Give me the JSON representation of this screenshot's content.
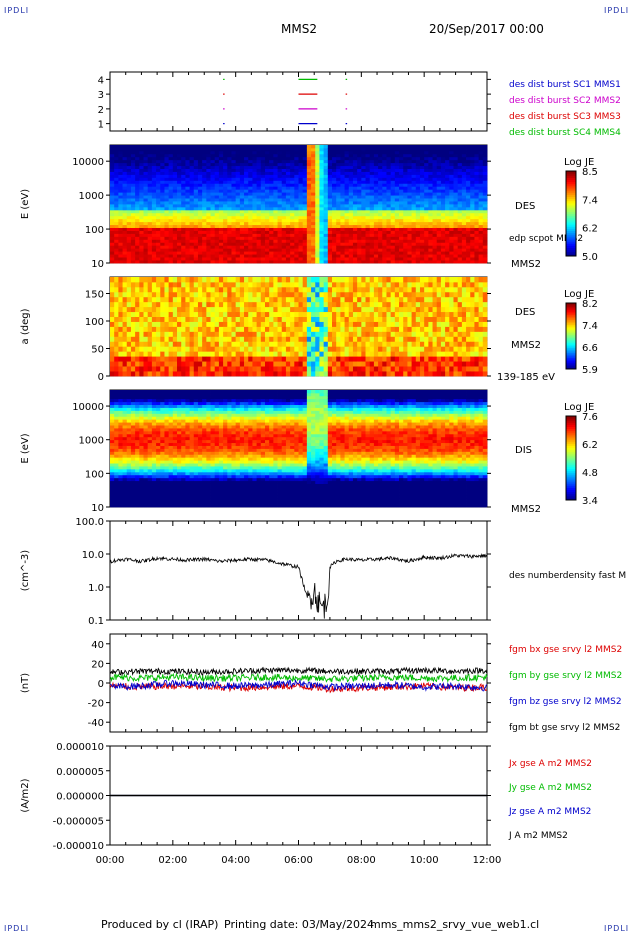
{
  "corner_tl": "IPDLI",
  "corner_tr": "IPDLI",
  "corner_bl": "IPDLI",
  "corner_br": "IPDLI",
  "header": {
    "spacecraft": "MMS2",
    "date": "20/Sep/2017 00:00"
  },
  "footer": {
    "produced_by": "Produced by cl (IRAP)",
    "printing_date": "Printing date: 03/May/2024",
    "file": "mms_mms2_srvy_vue_web1.cl"
  },
  "colors": {
    "mms1": "#0000cc",
    "mms2": "#cc00cc",
    "mms3": "#dd0000",
    "mms4": "#00bb00",
    "black": "#000000"
  },
  "chart_data": [
    {
      "type": "scatter",
      "panel": "burst availability",
      "ylim": [
        0.5,
        4.5
      ],
      "yticks": [
        "1",
        "2",
        "3",
        "4"
      ],
      "legend": [
        "des dist burst SC1 MMS1",
        "des dist burst SC2 MMS2",
        "des dist burst SC3 MMS3",
        "des dist burst SC4 MMS4"
      ],
      "series": [
        {
          "name": "des dist burst SC1 MMS1",
          "level": 1,
          "segments": [
            [
              3.6,
              3.62
            ],
            [
              6.0,
              6.6
            ],
            [
              7.5,
              7.52
            ]
          ]
        },
        {
          "name": "des dist burst SC2 MMS2",
          "level": 2,
          "segments": [
            [
              3.6,
              3.62
            ],
            [
              6.0,
              6.6
            ],
            [
              7.5,
              7.52
            ]
          ]
        },
        {
          "name": "des dist burst SC3 MMS3",
          "level": 3,
          "segments": [
            [
              3.6,
              3.62
            ],
            [
              6.0,
              6.6
            ],
            [
              7.5,
              7.52
            ]
          ]
        },
        {
          "name": "des dist burst SC4 MMS4",
          "level": 4,
          "segments": [
            [
              3.6,
              3.62
            ],
            [
              6.0,
              6.6
            ],
            [
              7.5,
              7.52
            ]
          ]
        }
      ]
    },
    {
      "type": "heatmap",
      "panel": "DES energy spectrogram",
      "ylabel": "E (eV)",
      "yscale": "log",
      "ylim": [
        10,
        30000
      ],
      "yticks": [
        "10",
        "100",
        "1000",
        "10000"
      ],
      "label": "DES",
      "overlay": "edp scpot MMS2",
      "sc": "MMS2",
      "colorbar": {
        "title": "Log JE",
        "min": 5.0,
        "max": 8.5,
        "ticks": [
          "8.5",
          "7.4",
          "6.2",
          "5.0"
        ]
      }
    },
    {
      "type": "heatmap",
      "panel": "DES pitch angle",
      "ylabel": "a (deg)",
      "ylim": [
        0,
        180
      ],
      "yticks": [
        "0",
        "50",
        "100",
        "150"
      ],
      "label": "DES",
      "sc": "MMS2",
      "range": "139-185 eV",
      "colorbar": {
        "title": "Log JE",
        "min": 5.9,
        "max": 8.2,
        "ticks": [
          "8.2",
          "7.4",
          "6.6",
          "5.9"
        ]
      }
    },
    {
      "type": "heatmap",
      "panel": "DIS energy spectrogram",
      "ylabel": "E (eV)",
      "yscale": "log",
      "ylim": [
        10,
        30000
      ],
      "yticks": [
        "10",
        "100",
        "1000",
        "10000"
      ],
      "label": "DIS",
      "sc": "MMS2",
      "colorbar": {
        "title": "Log JE",
        "min": 3.4,
        "max": 7.6,
        "ticks": [
          "7.6",
          "6.2",
          "4.8",
          "3.4"
        ]
      }
    },
    {
      "type": "line",
      "panel": "electron number density",
      "ylabel": "(cm^-3)",
      "yscale": "log",
      "ylim": [
        0.1,
        100
      ],
      "yticks": [
        "0.1",
        "1.0",
        "10.0",
        "100.0"
      ],
      "legend": [
        "des numberdensity fast M"
      ],
      "x": [
        0,
        0.5,
        1,
        1.5,
        2,
        2.5,
        3,
        3.5,
        4,
        4.5,
        5,
        5.5,
        6,
        6.3,
        6.5,
        6.7,
        6.9,
        7.0,
        7.2,
        7.5,
        8,
        8.5,
        9,
        9.5,
        10,
        10.5,
        11,
        11.5,
        12
      ],
      "values": [
        6,
        7,
        6,
        7.5,
        7,
        6.5,
        7,
        6,
        6.5,
        7,
        6.5,
        5,
        4,
        0.4,
        0.8,
        0.25,
        0.3,
        4,
        6,
        7,
        6.5,
        7,
        7.5,
        6,
        8,
        7.5,
        9,
        8.5,
        9
      ]
    },
    {
      "type": "line",
      "panel": "magnetic field",
      "ylabel": "(nT)",
      "ylim": [
        -50,
        50
      ],
      "yticks": [
        "-40",
        "-20",
        "0",
        "20",
        "40"
      ],
      "legend": [
        "fgm bx gse srvy l2 MMS2",
        "fgm by gse srvy l2 MMS2",
        "fgm bz gse srvy l2 MMS2",
        "fgm bt gse srvy l2 MMS2"
      ],
      "x": [
        0,
        1,
        2,
        3,
        4,
        5,
        6,
        7,
        8,
        9,
        10,
        11,
        12
      ],
      "series": [
        {
          "name": "fgm bx gse srvy l2 MMS2",
          "values": [
            -3,
            -4,
            -3,
            -4,
            -5,
            -4,
            -3,
            -6,
            -5,
            -4,
            -3,
            -5,
            -4
          ]
        },
        {
          "name": "fgm by gse srvy l2 MMS2",
          "values": [
            6,
            5,
            6,
            5,
            5,
            6,
            5,
            4,
            5,
            6,
            5,
            5,
            6
          ]
        },
        {
          "name": "fgm bz gse srvy l2 MMS2",
          "values": [
            -4,
            -3,
            0,
            -2,
            -3,
            -2,
            0,
            -4,
            -3,
            -2,
            -4,
            -3,
            -5
          ]
        },
        {
          "name": "fgm bt gse srvy l2 MMS2",
          "values": [
            11,
            12,
            12,
            11,
            12,
            13,
            13,
            12,
            12,
            12,
            13,
            12,
            13
          ]
        }
      ]
    },
    {
      "type": "line",
      "panel": "current density",
      "ylabel": "(A/m2)",
      "ylim": [
        -1e-05,
        1e-05
      ],
      "yticks": [
        "-0.000010",
        "-0.000005",
        "0.000000",
        "0.000005",
        "0.000010"
      ],
      "legend": [
        "Jx gse A m2 MMS2",
        "Jy gse A m2 MMS2",
        "Jz gse A m2 MMS2",
        "J A m2 MMS2"
      ],
      "x": [
        0,
        12
      ],
      "series": [
        {
          "name": "Jx gse A m2 MMS2",
          "values": [
            0,
            0
          ]
        },
        {
          "name": "Jy gse A m2 MMS2",
          "values": [
            0,
            0
          ]
        },
        {
          "name": "Jz gse A m2 MMS2",
          "values": [
            0,
            0
          ]
        },
        {
          "name": "J A m2 MMS2",
          "values": [
            0,
            0
          ]
        }
      ]
    }
  ],
  "xaxis": {
    "xlim": [
      0,
      12
    ],
    "ticks": [
      "00:00",
      "02:00",
      "04:00",
      "06:00",
      "08:00",
      "10:00",
      "12:00"
    ]
  }
}
